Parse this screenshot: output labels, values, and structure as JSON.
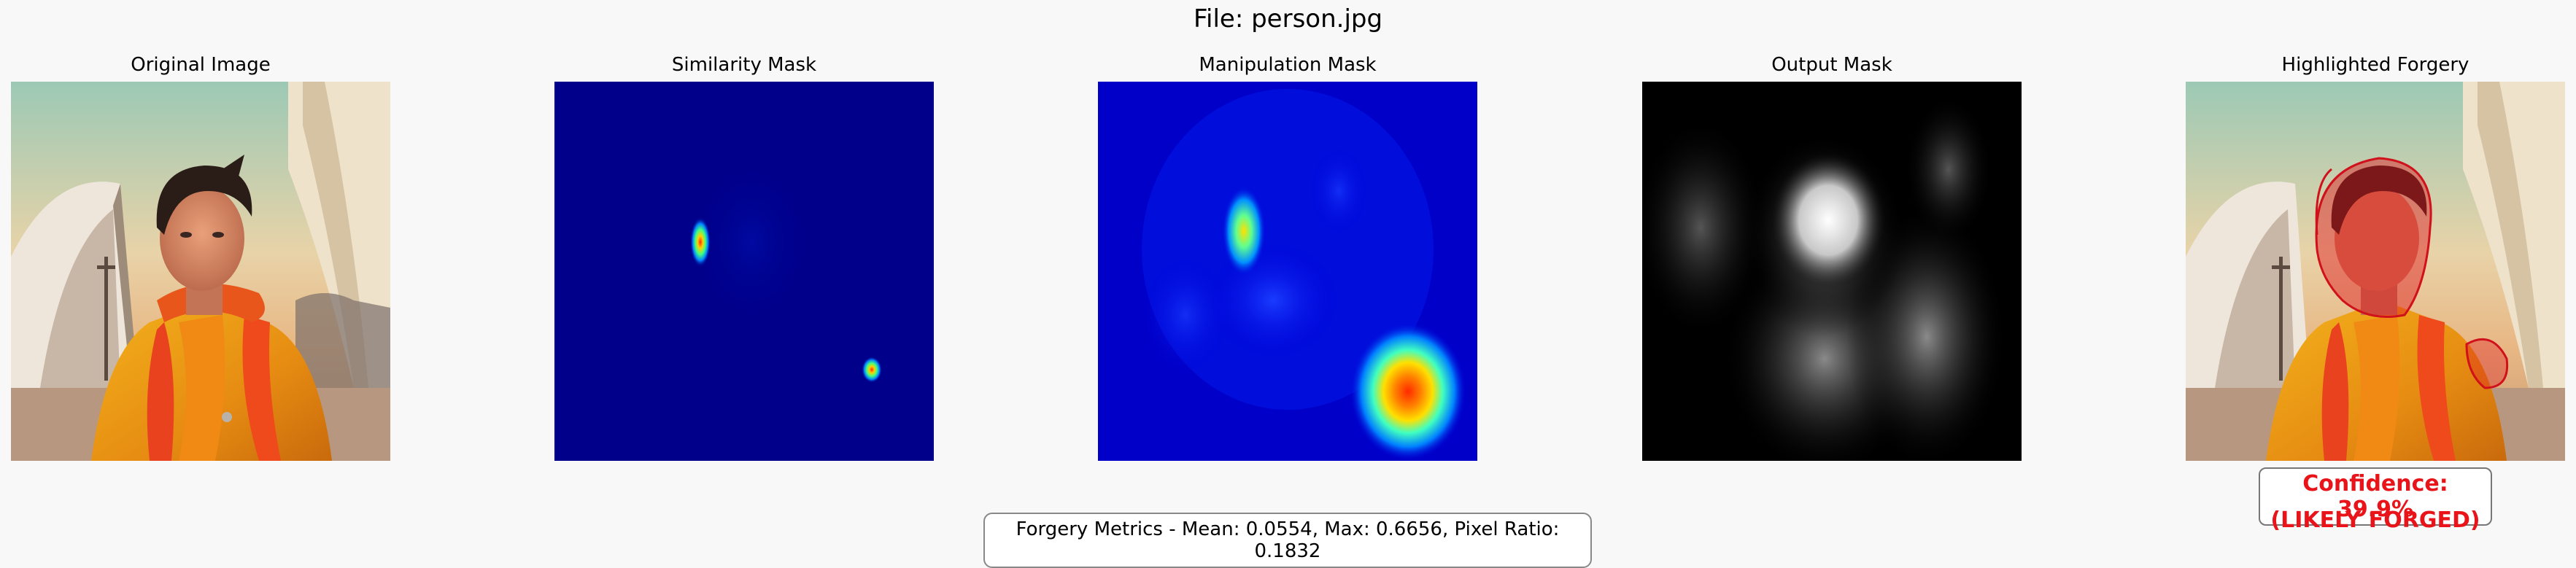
{
  "figure": {
    "title": "File: person.jpg"
  },
  "panels": [
    {
      "title": "Original Image",
      "image": "photo-person-in-orange-jacket"
    },
    {
      "title": "Similarity Mask",
      "image": "jet-colormap-heatmap"
    },
    {
      "title": "Manipulation Mask",
      "image": "jet-colormap-heatmap"
    },
    {
      "title": "Output Mask",
      "image": "grayscale-mask"
    },
    {
      "title": "Highlighted Forgery",
      "image": "photo-with-red-overlay"
    }
  ],
  "result": {
    "confidence": "Confidence: 39.9%",
    "verdict": "(LIKELY FORGED)",
    "metrics": "Forgery Metrics - Mean: 0.0554, Max: 0.6656, Pixel Ratio: 0.1832"
  },
  "colors": {
    "background": "#f8f8f8",
    "alert": "#e8141a",
    "jet_low": "#00008b",
    "jet_high": "#ff0000"
  }
}
